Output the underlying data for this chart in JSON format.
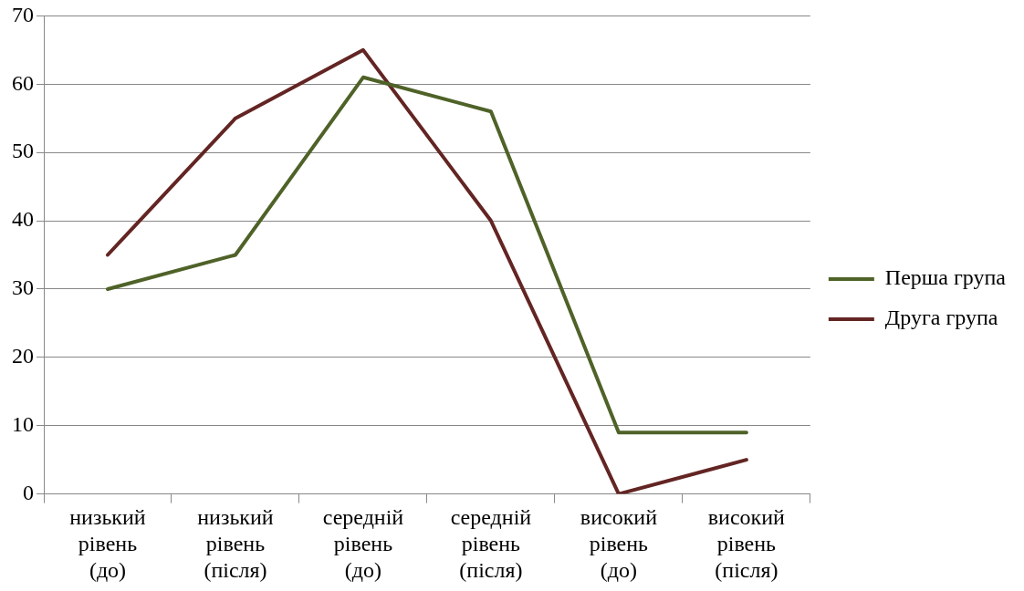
{
  "chart_data": {
    "type": "line",
    "categories": [
      "низький рівень (до)",
      "низький рівень (після)",
      "середній рівень (до)",
      "середній рівень (після)",
      "високий рівень (до)",
      "високий рівень (після)"
    ],
    "series": [
      {
        "name": "Перша група",
        "color": "#4f6228",
        "values": [
          30,
          35,
          61,
          56,
          9,
          9
        ]
      },
      {
        "name": "Друга група",
        "color": "#632523",
        "values": [
          35,
          55,
          65,
          40,
          0,
          5
        ]
      }
    ],
    "ylim": [
      0,
      70
    ],
    "yticks": [
      0,
      10,
      20,
      30,
      40,
      50,
      60,
      70
    ],
    "grid": "y",
    "legend": "right",
    "marker": "none",
    "line_style": "solid"
  }
}
